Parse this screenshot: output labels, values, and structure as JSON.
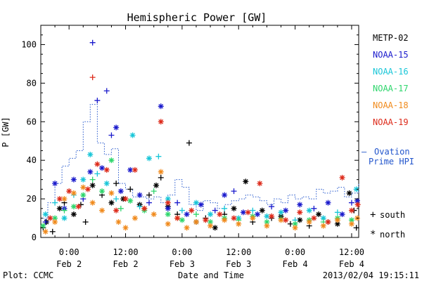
{
  "chart_data": {
    "type": "scatter",
    "title": "Hemispheric Power [GW]",
    "ylabel": "P [GW]",
    "xlabel": "Date and Time",
    "ylim": [
      0,
      110
    ],
    "xlim_hours": [
      -6,
      61.5
    ],
    "y_ticks": [
      0,
      20,
      40,
      60,
      80,
      100
    ],
    "x_ticks": [
      {
        "hour": 0,
        "time": "0:00",
        "date": "Feb 2"
      },
      {
        "hour": 12,
        "time": "12:00",
        "date": "Feb 2"
      },
      {
        "hour": 24,
        "time": "0:00",
        "date": "Feb 3"
      },
      {
        "hour": 36,
        "time": "12:00",
        "date": "Feb 3"
      },
      {
        "hour": 48,
        "time": "0:00",
        "date": "Feb 4"
      },
      {
        "hour": 60,
        "time": "12:00",
        "date": "Feb 4"
      }
    ],
    "legend_placement": "right",
    "hemisphere_markers": [
      {
        "symbol": "+",
        "label": "south"
      },
      {
        "symbol": "*",
        "label": "north"
      }
    ],
    "ovation": {
      "name": "Ovation Prime HPI",
      "legend_lines": [
        "Ovation",
        "Prime HPI"
      ],
      "dash": "—",
      "color": "#2255cc",
      "hours": [
        -6,
        -4.5,
        -3,
        -1.5,
        0,
        1.5,
        3,
        4.5,
        6,
        7.5,
        9,
        10.5,
        12,
        13.5,
        15,
        16.5,
        18,
        19.5,
        21,
        22.5,
        24,
        25.5,
        27,
        28.5,
        30,
        31.5,
        33,
        34.5,
        36,
        37.5,
        39,
        40.5,
        42,
        43.5,
        45,
        46.5,
        48,
        49.5,
        51,
        52.5,
        54,
        55.5,
        57,
        58.5,
        60,
        61.5
      ],
      "values": [
        10,
        18,
        28,
        37,
        41,
        45,
        60,
        69,
        49,
        43,
        46,
        28,
        25,
        21,
        21,
        20,
        21,
        18,
        22,
        30,
        26,
        17,
        14,
        19,
        18,
        15,
        17,
        19,
        20,
        22,
        21,
        19,
        17,
        20,
        18,
        22,
        20,
        21,
        20,
        25,
        23,
        24,
        26,
        21,
        23,
        28
      ]
    },
    "series": [
      {
        "name": "METP-02",
        "color": "#000000",
        "points": [
          {
            "h": -5.5,
            "v": 5,
            "m": "+"
          },
          {
            "h": -4.8,
            "v": 8,
            "m": "*"
          },
          {
            "h": -3.5,
            "v": 3,
            "m": "+"
          },
          {
            "h": -2,
            "v": 15,
            "m": "*"
          },
          {
            "h": -1,
            "v": 18,
            "m": "+"
          },
          {
            "h": 1,
            "v": 12,
            "m": "*"
          },
          {
            "h": 2.5,
            "v": 17,
            "m": "+"
          },
          {
            "h": 3.5,
            "v": 8,
            "m": "+"
          },
          {
            "h": 5,
            "v": 27,
            "m": "*"
          },
          {
            "h": 7,
            "v": 22,
            "m": "+"
          },
          {
            "h": 9,
            "v": 18,
            "m": "*"
          },
          {
            "h": 10,
            "v": 28,
            "m": "+"
          },
          {
            "h": 11.5,
            "v": 20,
            "m": "*"
          },
          {
            "h": 13,
            "v": 25,
            "m": "+"
          },
          {
            "h": 15,
            "v": 17,
            "m": "*"
          },
          {
            "h": 17,
            "v": 22,
            "m": "+"
          },
          {
            "h": 18.5,
            "v": 27,
            "m": "*"
          },
          {
            "h": 19.5,
            "v": 31,
            "m": "+"
          },
          {
            "h": 21,
            "v": 16,
            "m": "*"
          },
          {
            "h": 23,
            "v": 12,
            "m": "+"
          },
          {
            "h": 25.5,
            "v": 49,
            "m": "+"
          },
          {
            "h": 27,
            "v": 8,
            "m": "*"
          },
          {
            "h": 29,
            "v": 10,
            "m": "+"
          },
          {
            "h": 31,
            "v": 5,
            "m": "*"
          },
          {
            "h": 33,
            "v": 12,
            "m": "+"
          },
          {
            "h": 35,
            "v": 15,
            "m": "*"
          },
          {
            "h": 37.5,
            "v": 29,
            "m": "*"
          },
          {
            "h": 39,
            "v": 8,
            "m": "+"
          },
          {
            "h": 41,
            "v": 14,
            "m": "*"
          },
          {
            "h": 43,
            "v": 10,
            "m": "+"
          },
          {
            "h": 45,
            "v": 11,
            "m": "*"
          },
          {
            "h": 47,
            "v": 7,
            "m": "+"
          },
          {
            "h": 49,
            "v": 9,
            "m": "*"
          },
          {
            "h": 51,
            "v": 6,
            "m": "+"
          },
          {
            "h": 53,
            "v": 12,
            "m": "*"
          },
          {
            "h": 55,
            "v": 8,
            "m": "+"
          },
          {
            "h": 57,
            "v": 7,
            "m": "*"
          },
          {
            "h": 59.5,
            "v": 23,
            "m": "*"
          },
          {
            "h": 60.5,
            "v": 14,
            "m": "+"
          },
          {
            "h": 61,
            "v": 5,
            "m": "+"
          }
        ]
      },
      {
        "name": "NOAA-15",
        "color": "#1a1acc",
        "points": [
          {
            "h": -5,
            "v": 8,
            "m": "+"
          },
          {
            "h": -3,
            "v": 28,
            "m": "*"
          },
          {
            "h": -1,
            "v": 15,
            "m": "*"
          },
          {
            "h": 1,
            "v": 30,
            "m": "*"
          },
          {
            "h": 3,
            "v": 20,
            "m": "+"
          },
          {
            "h": 4.5,
            "v": 34,
            "m": "*"
          },
          {
            "h": 5,
            "v": 101,
            "m": "+"
          },
          {
            "h": 6,
            "v": 71,
            "m": "+"
          },
          {
            "h": 7,
            "v": 36,
            "m": "*"
          },
          {
            "h": 8,
            "v": 76,
            "m": "+"
          },
          {
            "h": 9,
            "v": 53,
            "m": "+"
          },
          {
            "h": 10,
            "v": 57,
            "m": "*"
          },
          {
            "h": 11,
            "v": 24,
            "m": "*"
          },
          {
            "h": 13,
            "v": 35,
            "m": "*"
          },
          {
            "h": 15,
            "v": 22,
            "m": "*"
          },
          {
            "h": 17,
            "v": 18,
            "m": "+"
          },
          {
            "h": 19.5,
            "v": 68,
            "m": "*"
          },
          {
            "h": 21,
            "v": 15,
            "m": "*"
          },
          {
            "h": 23,
            "v": 18,
            "m": "+"
          },
          {
            "h": 25,
            "v": 12,
            "m": "*"
          },
          {
            "h": 28,
            "v": 17,
            "m": "*"
          },
          {
            "h": 31,
            "v": 14,
            "m": "+"
          },
          {
            "h": 33,
            "v": 22,
            "m": "*"
          },
          {
            "h": 35,
            "v": 24,
            "m": "+"
          },
          {
            "h": 37,
            "v": 13,
            "m": "*"
          },
          {
            "h": 40,
            "v": 12,
            "m": "*"
          },
          {
            "h": 43,
            "v": 16,
            "m": "+"
          },
          {
            "h": 46,
            "v": 14,
            "m": "*"
          },
          {
            "h": 49,
            "v": 17,
            "m": "*"
          },
          {
            "h": 52,
            "v": 15,
            "m": "+"
          },
          {
            "h": 55,
            "v": 18,
            "m": "*"
          },
          {
            "h": 58,
            "v": 12,
            "m": "*"
          },
          {
            "h": 60,
            "v": 18,
            "m": "+"
          },
          {
            "h": 61.2,
            "v": 19,
            "m": "*"
          }
        ]
      },
      {
        "name": "NOAA-16",
        "color": "#19c6d8",
        "points": [
          {
            "h": -5,
            "v": 12,
            "m": "*"
          },
          {
            "h": -3,
            "v": 18,
            "m": "+"
          },
          {
            "h": -1,
            "v": 10,
            "m": "*"
          },
          {
            "h": 1,
            "v": 22,
            "m": "+"
          },
          {
            "h": 3,
            "v": 30,
            "m": "*"
          },
          {
            "h": 4.5,
            "v": 43,
            "m": "*"
          },
          {
            "h": 6,
            "v": 33,
            "m": "+"
          },
          {
            "h": 8,
            "v": 28,
            "m": "*"
          },
          {
            "h": 10,
            "v": 20,
            "m": "+"
          },
          {
            "h": 13.5,
            "v": 53,
            "m": "*"
          },
          {
            "h": 15,
            "v": 16,
            "m": "+"
          },
          {
            "h": 17,
            "v": 41,
            "m": "*"
          },
          {
            "h": 19,
            "v": 42,
            "m": "+"
          },
          {
            "h": 21,
            "v": 20,
            "m": "*"
          },
          {
            "h": 24,
            "v": 14,
            "m": "+"
          },
          {
            "h": 27,
            "v": 18,
            "m": "*"
          },
          {
            "h": 30,
            "v": 12,
            "m": "*"
          },
          {
            "h": 33,
            "v": 15,
            "m": "+"
          },
          {
            "h": 36,
            "v": 10,
            "m": "*"
          },
          {
            "h": 39,
            "v": 14,
            "m": "+"
          },
          {
            "h": 42,
            "v": 11,
            "m": "*"
          },
          {
            "h": 45,
            "v": 13,
            "m": "*"
          },
          {
            "h": 48,
            "v": 9,
            "m": "+"
          },
          {
            "h": 51,
            "v": 14,
            "m": "*"
          },
          {
            "h": 54,
            "v": 10,
            "m": "*"
          },
          {
            "h": 57,
            "v": 13,
            "m": "+"
          },
          {
            "h": 61,
            "v": 25,
            "m": "*"
          }
        ]
      },
      {
        "name": "NOAA-17",
        "color": "#2ed66c",
        "points": [
          {
            "h": -5.5,
            "v": 6,
            "m": "*"
          },
          {
            "h": -3,
            "v": 10,
            "m": "*"
          },
          {
            "h": -1,
            "v": 14,
            "m": "+"
          },
          {
            "h": 1,
            "v": 16,
            "m": "*"
          },
          {
            "h": 3,
            "v": 22,
            "m": "*"
          },
          {
            "h": 5,
            "v": 30,
            "m": "+"
          },
          {
            "h": 7,
            "v": 24,
            "m": "*"
          },
          {
            "h": 9,
            "v": 40,
            "m": "*"
          },
          {
            "h": 11,
            "v": 15,
            "m": "+"
          },
          {
            "h": 13,
            "v": 19,
            "m": "*"
          },
          {
            "h": 16,
            "v": 14,
            "m": "*"
          },
          {
            "h": 18,
            "v": 24,
            "m": "+"
          },
          {
            "h": 21,
            "v": 12,
            "m": "*"
          },
          {
            "h": 24,
            "v": 9,
            "m": "*"
          },
          {
            "h": 27,
            "v": 12,
            "m": "+"
          },
          {
            "h": 30,
            "v": 8,
            "m": "*"
          },
          {
            "h": 33,
            "v": 10,
            "m": "*"
          },
          {
            "h": 36,
            "v": 9,
            "m": "+"
          },
          {
            "h": 39,
            "v": 11,
            "m": "*"
          },
          {
            "h": 42,
            "v": 8,
            "m": "*"
          },
          {
            "h": 45,
            "v": 10,
            "m": "+"
          },
          {
            "h": 48,
            "v": 7,
            "m": "*"
          },
          {
            "h": 51,
            "v": 9,
            "m": "*"
          },
          {
            "h": 54,
            "v": 8,
            "m": "+"
          },
          {
            "h": 57,
            "v": 10,
            "m": "*"
          },
          {
            "h": 60,
            "v": 9,
            "m": "*"
          }
        ]
      },
      {
        "name": "NOAA-18",
        "color": "#f08a1c",
        "points": [
          {
            "h": -5,
            "v": 3,
            "m": "*"
          },
          {
            "h": -3,
            "v": 8,
            "m": "*"
          },
          {
            "h": -1,
            "v": 20,
            "m": "*"
          },
          {
            "h": 1,
            "v": 23,
            "m": "*"
          },
          {
            "h": 3,
            "v": 26,
            "m": "*"
          },
          {
            "h": 5,
            "v": 18,
            "m": "*"
          },
          {
            "h": 7,
            "v": 14,
            "m": "*"
          },
          {
            "h": 9,
            "v": 23,
            "m": "*"
          },
          {
            "h": 10.5,
            "v": 8,
            "m": "*"
          },
          {
            "h": 12,
            "v": 5,
            "m": "*"
          },
          {
            "h": 14,
            "v": 10,
            "m": "*"
          },
          {
            "h": 16,
            "v": 15,
            "m": "*"
          },
          {
            "h": 18,
            "v": 12,
            "m": "*"
          },
          {
            "h": 19.5,
            "v": 34,
            "m": "*"
          },
          {
            "h": 21,
            "v": 7,
            "m": "*"
          },
          {
            "h": 23,
            "v": 10,
            "m": "*"
          },
          {
            "h": 25,
            "v": 5,
            "m": "*"
          },
          {
            "h": 27,
            "v": 8,
            "m": "*"
          },
          {
            "h": 30,
            "v": 6,
            "m": "*"
          },
          {
            "h": 33,
            "v": 9,
            "m": "*"
          },
          {
            "h": 36,
            "v": 7,
            "m": "*"
          },
          {
            "h": 39,
            "v": 10,
            "m": "*"
          },
          {
            "h": 42,
            "v": 6,
            "m": "*"
          },
          {
            "h": 45,
            "v": 9,
            "m": "*"
          },
          {
            "h": 48,
            "v": 5,
            "m": "*"
          },
          {
            "h": 51,
            "v": 8,
            "m": "*"
          },
          {
            "h": 54,
            "v": 6,
            "m": "*"
          },
          {
            "h": 57,
            "v": 9,
            "m": "*"
          },
          {
            "h": 60,
            "v": 7,
            "m": "*"
          },
          {
            "h": 61.2,
            "v": 10,
            "m": "*"
          }
        ]
      },
      {
        "name": "NOAA-19",
        "color": "#dd2a1a",
        "points": [
          {
            "h": -4,
            "v": 10,
            "m": "*"
          },
          {
            "h": -2,
            "v": 20,
            "m": "*"
          },
          {
            "h": 0,
            "v": 24,
            "m": "*"
          },
          {
            "h": 2,
            "v": 16,
            "m": "*"
          },
          {
            "h": 4,
            "v": 25,
            "m": "*"
          },
          {
            "h": 5,
            "v": 83,
            "m": "+"
          },
          {
            "h": 6,
            "v": 38,
            "m": "*"
          },
          {
            "h": 8,
            "v": 35,
            "m": "*"
          },
          {
            "h": 10,
            "v": 14,
            "m": "*"
          },
          {
            "h": 12,
            "v": 20,
            "m": "*"
          },
          {
            "h": 14,
            "v": 35,
            "m": "*"
          },
          {
            "h": 16,
            "v": 15,
            "m": "*"
          },
          {
            "h": 19.5,
            "v": 60,
            "m": "*"
          },
          {
            "h": 21,
            "v": 18,
            "m": "*"
          },
          {
            "h": 23,
            "v": 10,
            "m": "*"
          },
          {
            "h": 26,
            "v": 14,
            "m": "*"
          },
          {
            "h": 29,
            "v": 9,
            "m": "*"
          },
          {
            "h": 32,
            "v": 12,
            "m": "*"
          },
          {
            "h": 35,
            "v": 10,
            "m": "*"
          },
          {
            "h": 38,
            "v": 13,
            "m": "*"
          },
          {
            "h": 40.5,
            "v": 28,
            "m": "*"
          },
          {
            "h": 43,
            "v": 11,
            "m": "*"
          },
          {
            "h": 46,
            "v": 9,
            "m": "*"
          },
          {
            "h": 49,
            "v": 13,
            "m": "*"
          },
          {
            "h": 52,
            "v": 10,
            "m": "*"
          },
          {
            "h": 55,
            "v": 8,
            "m": "*"
          },
          {
            "h": 58,
            "v": 31,
            "m": "*"
          },
          {
            "h": 60,
            "v": 14,
            "m": "*"
          },
          {
            "h": 61.3,
            "v": 17,
            "m": "*"
          }
        ]
      }
    ]
  },
  "footer": {
    "plot_source": "Plot: CCMC",
    "timestamp": "2013/02/04 19:15:11"
  }
}
